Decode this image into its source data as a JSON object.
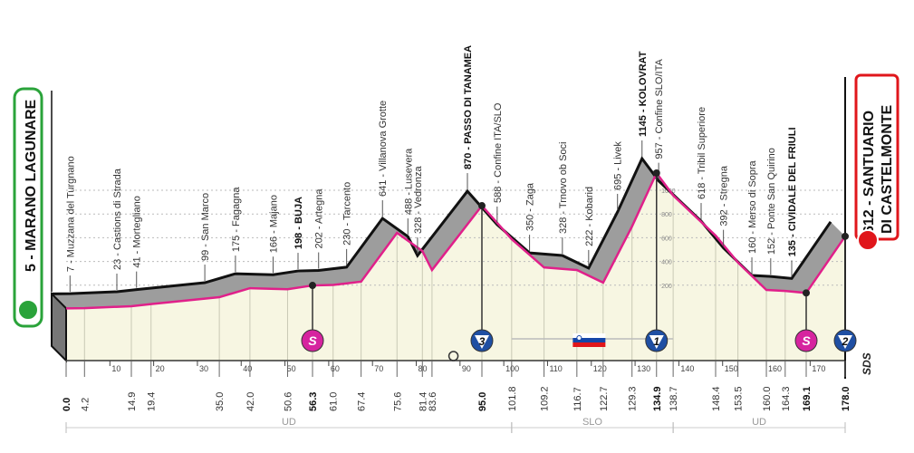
{
  "chart_data": {
    "type": "area",
    "title": "",
    "xlabel": "",
    "ylabel": "",
    "xlim": [
      0,
      178
    ],
    "ylim": [
      0,
      1145
    ],
    "x_ticks": [
      10,
      20,
      30,
      40,
      50,
      60,
      70,
      80,
      90,
      100,
      110,
      120,
      130,
      140,
      150,
      160,
      170
    ],
    "elevation_grid": [
      200,
      400,
      600,
      800,
      1000
    ],
    "profile": [
      {
        "km": 0.0,
        "elev": 5,
        "name": "Marano Lagunare",
        "bold_km": true
      },
      {
        "km": 4.2,
        "elev": 7,
        "name": "Muzzana del Turgnano"
      },
      {
        "km": 14.9,
        "elev": 23,
        "name": "Castions di Strada"
      },
      {
        "km": 19.4,
        "elev": 41,
        "name": "Mortegliano"
      },
      {
        "km": 35.0,
        "elev": 99,
        "name": "San Marco"
      },
      {
        "km": 42.0,
        "elev": 175,
        "name": "Fagagna"
      },
      {
        "km": 50.6,
        "elev": 166,
        "name": "Majano"
      },
      {
        "km": 56.3,
        "elev": 198,
        "name": "BUJA",
        "bold": true,
        "bold_km": true
      },
      {
        "km": 61.0,
        "elev": 202,
        "name": "Artegna"
      },
      {
        "km": 67.4,
        "elev": 230,
        "name": "Tarcento"
      },
      {
        "km": 75.6,
        "elev": 641,
        "name": "Villanova Grotte"
      },
      {
        "km": 81.4,
        "elev": 488,
        "name": "Lusevera"
      },
      {
        "km": 83.6,
        "elev": 328,
        "name": "Vedronza"
      },
      {
        "km": 95.0,
        "elev": 870,
        "name": "PASSO DI TANAMEA",
        "bold": true,
        "bold_km": true
      },
      {
        "km": 101.8,
        "elev": 588,
        "name": "Confine ITA/SLO"
      },
      {
        "km": 109.2,
        "elev": 350,
        "name": "Zaga"
      },
      {
        "km": 116.7,
        "elev": 328,
        "name": "Trnovo ob Soci"
      },
      {
        "km": 122.7,
        "elev": 222,
        "name": "Kobarid"
      },
      {
        "km": 129.3,
        "elev": 695,
        "name": "Livek"
      },
      {
        "km": 134.9,
        "elev": 1145,
        "name": "KOLOVRAT",
        "bold": true,
        "bold_km": true
      },
      {
        "km": 138.7,
        "elev": 957,
        "name": "Confine SLO/ITA"
      },
      {
        "km": 148.4,
        "elev": 618,
        "name": "Tribil Superiore"
      },
      {
        "km": 153.5,
        "elev": 392,
        "name": "Stregna"
      },
      {
        "km": 160.0,
        "elev": 160,
        "name": "Merso di Sopra"
      },
      {
        "km": 164.3,
        "elev": 152,
        "name": "Ponte San Quirino"
      },
      {
        "km": 169.1,
        "elev": 135,
        "name": "CIVIDALE DEL FRIULI",
        "bold": true,
        "bold_km": true
      },
      {
        "km": 178.0,
        "elev": 612,
        "name": "Santuario di Castelmonte",
        "bold_km": true
      }
    ],
    "km_labels": [
      "0.0",
      "4.2",
      "14.9",
      "19.4",
      "35.0",
      "42.0",
      "50.6",
      "56.3",
      "61.0",
      "67.4",
      "75.6",
      "81.4",
      "83.6",
      "95.0",
      "101.8",
      "109.2",
      "116.7",
      "122.7",
      "129.3",
      "134.9",
      "138.7",
      "148.4",
      "153.5",
      "160.0",
      "164.3",
      "169.1",
      "178.0"
    ],
    "markers": [
      {
        "km": 56.3,
        "type": "sprint",
        "label": "S",
        "color": "#d6249f"
      },
      {
        "km": 95.0,
        "type": "kom",
        "label": "3",
        "color": "#1f4fa3"
      },
      {
        "km": 134.9,
        "type": "kom",
        "label": "1",
        "color": "#1f4fa3"
      },
      {
        "km": 169.1,
        "type": "sprint",
        "label": "S",
        "color": "#d6249f"
      },
      {
        "km": 178.0,
        "type": "kom",
        "label": "2",
        "color": "#1f4fa3"
      }
    ],
    "regions": [
      {
        "from": 0,
        "to": 101.8,
        "label": "UD"
      },
      {
        "from": 101.8,
        "to": 138.7,
        "label": "SLO"
      },
      {
        "from": 138.7,
        "to": 178,
        "label": "UD"
      }
    ],
    "country_flag": {
      "country": "Slovenia",
      "from": 101.8,
      "to": 138.7
    }
  },
  "start": {
    "label": "5 - MARANO LAGUNARE",
    "color": "#2aa33a"
  },
  "finish": {
    "line1": "612 - SANTUARIO",
    "line2": "DI CASTELMONTE",
    "color": "#e0161b"
  },
  "logo": "SDS",
  "colors": {
    "front_line": "#e0208a",
    "back_line": "#111111",
    "band": "#9d9d9d",
    "ground": "#f7f6e2"
  }
}
